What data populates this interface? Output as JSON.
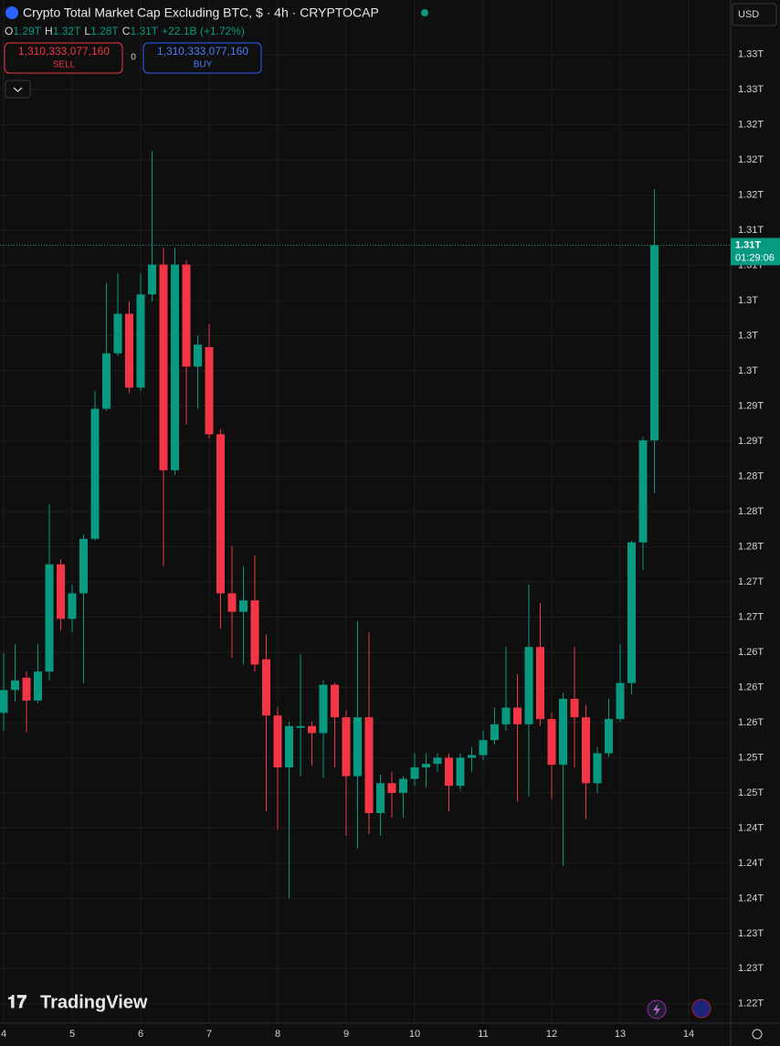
{
  "header": {
    "title": "Crypto Total Market Cap Excluding BTC, $ · 4h · CRYPTOCAP",
    "o_key": "O",
    "o": "1.29T",
    "h_key": "H",
    "h": "1.32T",
    "l_key": "L",
    "l": "1.28T",
    "c_key": "C",
    "c": "1.31T",
    "change": "+22.1B (+1.72%)",
    "sell_price": "1,310,333,077,160",
    "sell": "SELL",
    "spread": "0",
    "buy_price": "1,310,333,077,160",
    "buy": "BUY",
    "currency": "USD",
    "last_price_label": "1.31T",
    "countdown": "01:29:06",
    "logo": "TradingView"
  },
  "chart_data": {
    "type": "candlestick",
    "up_color": "#089981",
    "down_color": "#f23645",
    "grid": true,
    "categories": [
      "4",
      null,
      null,
      null,
      null,
      null,
      "5",
      null,
      null,
      null,
      null,
      null,
      "6",
      null,
      null,
      null,
      null,
      null,
      "7",
      null,
      null,
      null,
      null,
      null,
      "8",
      null,
      null,
      null,
      null,
      null,
      "9",
      null,
      null,
      null,
      null,
      null,
      "10",
      null,
      null,
      null,
      null,
      null,
      "11",
      null,
      null,
      null,
      null,
      null,
      "12",
      null,
      null,
      null,
      null,
      null,
      "13",
      null,
      null,
      null,
      null,
      null,
      "14"
    ],
    "open": [
      1.2571,
      1.2597,
      1.2611,
      1.2585,
      1.2618,
      1.274,
      1.2678,
      1.2707,
      1.2769,
      1.2917,
      1.298,
      1.3025,
      1.2941,
      1.3047,
      1.3081,
      1.2847,
      1.3081,
      1.2965,
      1.2987,
      1.2888,
      1.2707,
      1.2686,
      1.2699,
      1.2632,
      1.2568,
      1.2509,
      1.2554,
      1.2556,
      1.2548,
      1.2603,
      1.2566,
      1.2499,
      1.2566,
      1.2457,
      1.2491,
      1.248,
      1.2496,
      1.2509,
      1.2513,
      1.252,
      1.2488,
      1.252,
      1.2523,
      1.254,
      1.2558,
      1.2577,
      1.2558,
      1.2646,
      1.2564,
      1.2512,
      1.2587,
      1.2566,
      1.2491,
      1.2525,
      1.2564,
      1.2605,
      1.2765,
      1.2881,
      null,
      null,
      null
    ],
    "high": [
      1.2639,
      1.2649,
      1.2618,
      1.2649,
      1.2808,
      1.2746,
      1.2717,
      1.2774,
      1.2937,
      1.306,
      1.3071,
      1.3039,
      1.3071,
      1.321,
      1.31,
      1.31,
      1.3086,
      1.3,
      1.3013,
      1.2894,
      1.2761,
      1.2738,
      1.275,
      1.266,
      1.2577,
      1.2561,
      1.2638,
      1.2561,
      1.2608,
      1.2605,
      1.2574,
      1.2675,
      1.2663,
      1.2501,
      1.2504,
      1.2499,
      1.2525,
      1.2525,
      1.2525,
      1.2525,
      1.2525,
      1.2532,
      1.2551,
      1.2577,
      1.2646,
      1.2615,
      1.2717,
      1.2696,
      1.2571,
      1.2594,
      1.2646,
      1.258,
      1.2532,
      1.2587,
      1.2649,
      1.2767,
      1.2885,
      1.3167,
      null,
      null,
      null
    ],
    "low": [
      1.2551,
      1.2584,
      1.2549,
      1.2582,
      1.2608,
      1.2665,
      1.2663,
      1.2605,
      1.2767,
      1.2915,
      1.2977,
      1.2935,
      1.2937,
      1.3039,
      1.2738,
      1.2842,
      1.2899,
      1.2917,
      1.2883,
      1.2667,
      1.2634,
      1.2626,
      1.2618,
      1.2459,
      1.2438,
      1.236,
      1.2499,
      1.2511,
      1.2497,
      1.2509,
      1.2431,
      1.2417,
      1.2433,
      1.2431,
      1.2452,
      1.2452,
      1.2488,
      1.2486,
      1.2504,
      1.2459,
      1.2483,
      1.2504,
      1.2517,
      1.2535,
      1.2551,
      1.247,
      1.2476,
      1.2556,
      1.2473,
      1.2397,
      1.2509,
      1.245,
      1.248,
      1.2521,
      1.2561,
      1.2592,
      1.2733,
      1.2821,
      null,
      null,
      null
    ],
    "close": [
      1.2597,
      1.2608,
      1.2585,
      1.2618,
      1.274,
      1.2678,
      1.2707,
      1.2769,
      1.2917,
      1.298,
      1.3025,
      1.2941,
      1.3047,
      1.3081,
      1.2847,
      1.3081,
      1.2965,
      1.299,
      1.2888,
      1.2707,
      1.2686,
      1.2699,
      1.2626,
      1.2568,
      1.2509,
      1.2556,
      1.2556,
      1.2548,
      1.2603,
      1.2566,
      1.2499,
      1.2566,
      1.2457,
      1.2491,
      1.248,
      1.2496,
      1.2509,
      1.2513,
      1.252,
      1.2488,
      1.252,
      1.2523,
      1.254,
      1.2558,
      1.2577,
      1.2558,
      1.2646,
      1.2564,
      1.2512,
      1.2587,
      1.2566,
      1.2491,
      1.2525,
      1.2564,
      1.2605,
      1.2765,
      1.2881,
      1.3103,
      null,
      null,
      null
    ],
    "ylim": [
      1.2218,
      1.3382
    ],
    "yticks": [
      {
        "value": 1.332,
        "label": "1.33T"
      },
      {
        "value": 1.328,
        "label": "1.33T"
      },
      {
        "value": 1.324,
        "label": "1.32T"
      },
      {
        "value": 1.32,
        "label": "1.32T"
      },
      {
        "value": 1.316,
        "label": "1.32T"
      },
      {
        "value": 1.312,
        "label": "1.31T"
      },
      {
        "value": 1.308,
        "label": "1.31T"
      },
      {
        "value": 1.304,
        "label": "1.3T"
      },
      {
        "value": 1.3,
        "label": "1.3T"
      },
      {
        "value": 1.296,
        "label": "1.3T"
      },
      {
        "value": 1.292,
        "label": "1.29T"
      },
      {
        "value": 1.288,
        "label": "1.29T"
      },
      {
        "value": 1.284,
        "label": "1.28T"
      },
      {
        "value": 1.28,
        "label": "1.28T"
      },
      {
        "value": 1.276,
        "label": "1.28T"
      },
      {
        "value": 1.272,
        "label": "1.27T"
      },
      {
        "value": 1.268,
        "label": "1.27T"
      },
      {
        "value": 1.264,
        "label": "1.26T"
      },
      {
        "value": 1.26,
        "label": "1.26T"
      },
      {
        "value": 1.256,
        "label": "1.26T"
      },
      {
        "value": 1.252,
        "label": "1.25T"
      },
      {
        "value": 1.248,
        "label": "1.25T"
      },
      {
        "value": 1.244,
        "label": "1.24T"
      },
      {
        "value": 1.24,
        "label": "1.24T"
      },
      {
        "value": 1.236,
        "label": "1.24T"
      },
      {
        "value": 1.232,
        "label": "1.23T"
      },
      {
        "value": 1.228,
        "label": "1.23T"
      },
      {
        "value": 1.224,
        "label": "1.22T"
      }
    ]
  }
}
